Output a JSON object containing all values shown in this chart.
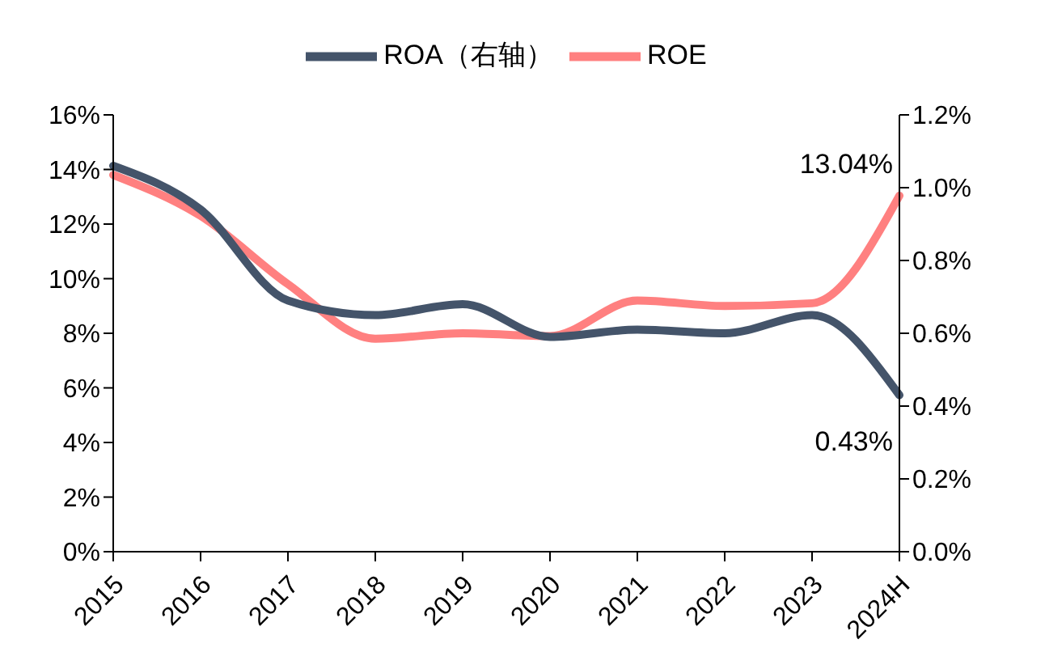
{
  "chart_data": {
    "type": "line",
    "categories": [
      "2015",
      "2016",
      "2017",
      "2018",
      "2019",
      "2020",
      "2021",
      "2022",
      "2023",
      "2024H"
    ],
    "series": [
      {
        "name": "ROE",
        "color": "#ff8080",
        "values": [
          13.8,
          12.3,
          9.8,
          7.8,
          8.0,
          7.9,
          9.2,
          9.0,
          9.1,
          13.04
        ],
        "value_labels": [
          null,
          null,
          null,
          null,
          null,
          null,
          null,
          null,
          null,
          "13.04%"
        ]
      },
      {
        "name": "ROA（右轴）",
        "color": "#44546a",
        "axis": "y2",
        "values": [
          1.06,
          0.94,
          0.69,
          0.65,
          0.68,
          0.59,
          0.61,
          0.6,
          0.65,
          0.43
        ],
        "value_labels": [
          null,
          null,
          null,
          null,
          null,
          null,
          null,
          null,
          null,
          "0.43%"
        ]
      }
    ],
    "ylim": [
      0,
      16
    ],
    "yticks": [
      {
        "value": 0,
        "label": "0%"
      },
      {
        "value": 2,
        "label": "2%"
      },
      {
        "value": 4,
        "label": "4%"
      },
      {
        "value": 6,
        "label": "6%"
      },
      {
        "value": 8,
        "label": "8%"
      },
      {
        "value": 10,
        "label": "10%"
      },
      {
        "value": 12,
        "label": "12%"
      },
      {
        "value": 14,
        "label": "14%"
      },
      {
        "value": 16,
        "label": "16%"
      }
    ],
    "y2lim": [
      0,
      1.2
    ],
    "y2ticks": [
      {
        "value": 0,
        "label": "0.0%"
      },
      {
        "value": 0.2,
        "label": "0.2%"
      },
      {
        "value": 0.4,
        "label": "0.4%"
      },
      {
        "value": 0.6,
        "label": "0.6%"
      },
      {
        "value": 0.8,
        "label": "0.8%"
      },
      {
        "value": 1.0,
        "label": "1.0%"
      },
      {
        "value": 1.2,
        "label": "1.2%"
      }
    ],
    "grid": false,
    "legend": "top",
    "marker": "none",
    "line_style": "solid"
  }
}
